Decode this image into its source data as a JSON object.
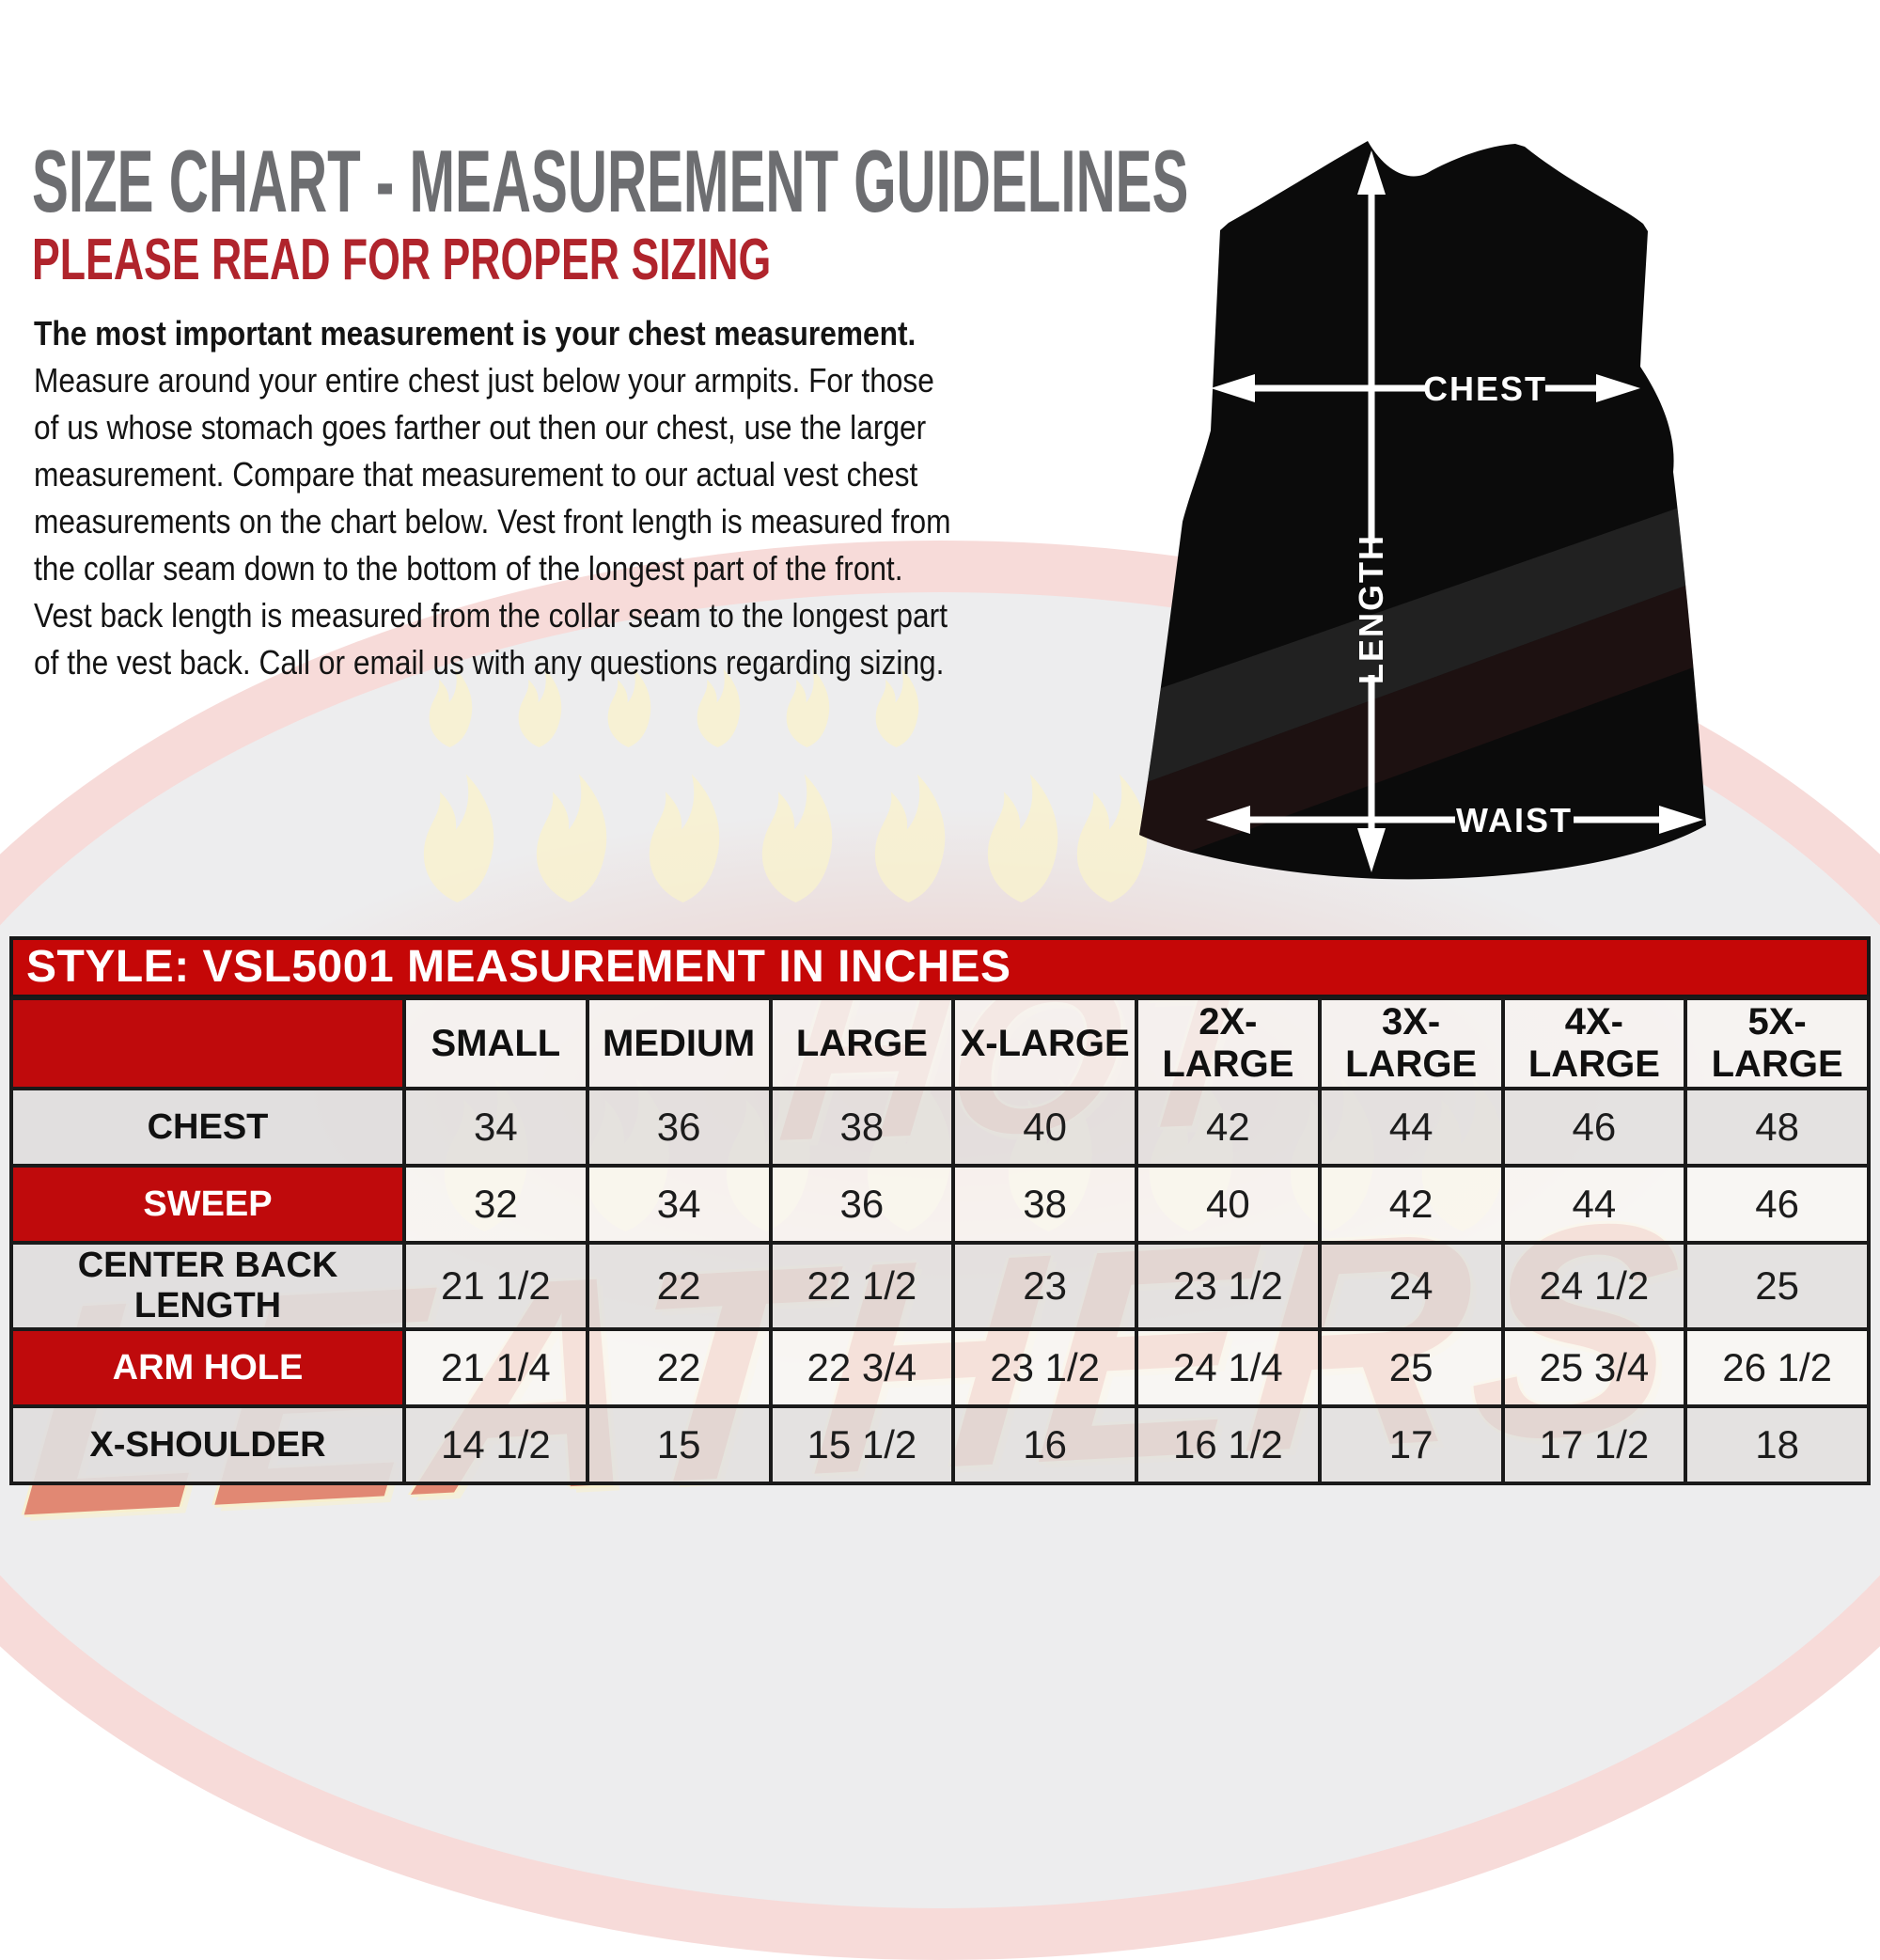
{
  "header": {
    "title": "SIZE CHART - MEASUREMENT GUIDELINES",
    "subtitle": "PLEASE READ FOR PROPER SIZING"
  },
  "intro": {
    "lines": [
      "The most important measurement is your chest measurement.",
      "Measure around your entire chest just below your armpits.  For those",
      "of us whose stomach goes farther out then our chest, use the larger",
      "measurement. Compare that measurement to our actual vest chest",
      "measurements on the chart below.  Vest front length is measured from",
      "the collar seam down to the bottom of the longest part of the front.",
      "Vest back length is measured from the collar seam to the longest part",
      "of the vest back.  Call or email us with any questions regarding sizing."
    ]
  },
  "vest_diagram": {
    "chest_label": "CHEST",
    "length_label": "LENGTH",
    "waist_label": "WAIST"
  },
  "watermark": {
    "word1": "HOT",
    "word2": "LEATHERS"
  },
  "size_table": {
    "title": "STYLE: VSL5001 MEASUREMENT IN INCHES",
    "columns": [
      "SMALL",
      "MEDIUM",
      "LARGE",
      "X-LARGE",
      "2X-LARGE",
      "3X-LARGE",
      "4X-LARGE",
      "5X-LARGE"
    ],
    "rows": [
      {
        "label": "CHEST",
        "style": "gray",
        "values": [
          "34",
          "36",
          "38",
          "40",
          "42",
          "44",
          "46",
          "48"
        ]
      },
      {
        "label": "SWEEP",
        "style": "red",
        "values": [
          "32",
          "34",
          "36",
          "38",
          "40",
          "42",
          "44",
          "46"
        ]
      },
      {
        "label": "CENTER BACK LENGTH",
        "style": "gray",
        "values": [
          "21 1/2",
          "22",
          "22 1/2",
          "23",
          "23 1/2",
          "24",
          "24 1/2",
          "25"
        ]
      },
      {
        "label": "ARM HOLE",
        "style": "red",
        "values": [
          "21 1/4",
          "22",
          "22 3/4",
          "23 1/2",
          "24 1/4",
          "25",
          "25 3/4",
          "26 1/2"
        ]
      },
      {
        "label": "X-SHOULDER",
        "style": "gray",
        "values": [
          "14 1/2",
          "15",
          "15 1/2",
          "16",
          "16 1/2",
          "17",
          "17 1/2",
          "18"
        ]
      }
    ]
  },
  "colors": {
    "title_gray": "#6d6e71",
    "subtitle_red": "#b0242c",
    "table_title_red": "#c50707",
    "label_cell_red": "#bf0a0c",
    "border_black": "#1a1a1a",
    "vest_black": "#0b0b0b",
    "watermark_red": "#c9201a",
    "watermark_cream": "#f7f0cd"
  }
}
